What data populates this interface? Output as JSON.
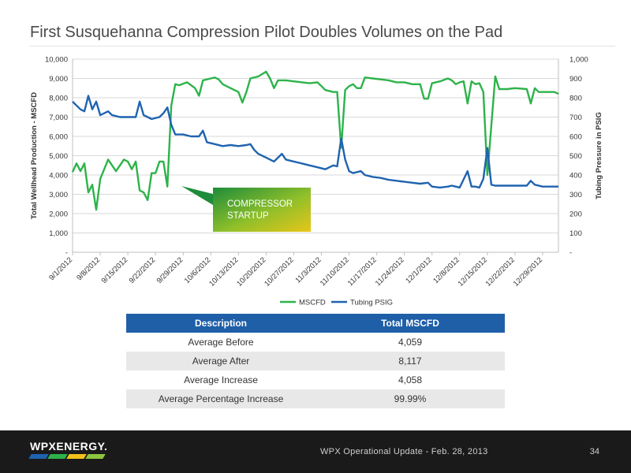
{
  "slide": {
    "title": "First Susquehanna Compression Pilot Doubles Volumes on the Pad"
  },
  "chart_data": {
    "type": "line",
    "ylabel": "Total Wellhead Production - MSCFD",
    "ylabel_right": "Tubing Pressure in PSIG",
    "ylim": [
      0,
      10000
    ],
    "ylim_right": [
      0,
      1000
    ],
    "y_ticks": [
      "-",
      "1,000",
      "2,000",
      "3,000",
      "4,000",
      "5,000",
      "6,000",
      "7,000",
      "8,000",
      "9,000",
      "10,000"
    ],
    "y_ticks_right": [
      "-",
      "100",
      "200",
      "300",
      "400",
      "500",
      "600",
      "700",
      "800",
      "900",
      "1,000"
    ],
    "x_ticks": [
      "9/1/2012",
      "9/8/2012",
      "9/15/2012",
      "9/22/2012",
      "9/29/2012",
      "10/6/2012",
      "10/13/2012",
      "10/20/2012",
      "10/27/2012",
      "11/3/2012",
      "11/10/2012",
      "11/17/2012",
      "11/24/2012",
      "12/1/2012",
      "12/8/2012",
      "12/15/2012",
      "12/22/2012",
      "12/29/2012"
    ],
    "x_start": "2012-09-01",
    "x_end": "2013-01-02",
    "grid": true,
    "legend_position": "bottom",
    "annotation": "COMPRESSOR STARTUP",
    "series": [
      {
        "name": "MSCFD",
        "axis": "left",
        "color": "#2db34a",
        "points": [
          [
            "2012-09-01",
            4150
          ],
          [
            "2012-09-02",
            4600
          ],
          [
            "2012-09-03",
            4200
          ],
          [
            "2012-09-04",
            4600
          ],
          [
            "2012-09-05",
            3100
          ],
          [
            "2012-09-06",
            3500
          ],
          [
            "2012-09-07",
            2200
          ],
          [
            "2012-09-08",
            3800
          ],
          [
            "2012-09-09",
            4300
          ],
          [
            "2012-09-10",
            4800
          ],
          [
            "2012-09-11",
            4500
          ],
          [
            "2012-09-12",
            4200
          ],
          [
            "2012-09-14",
            4800
          ],
          [
            "2012-09-15",
            4700
          ],
          [
            "2012-09-16",
            4300
          ],
          [
            "2012-09-17",
            4700
          ],
          [
            "2012-09-18",
            3200
          ],
          [
            "2012-09-19",
            3100
          ],
          [
            "2012-09-20",
            2700
          ],
          [
            "2012-09-21",
            4100
          ],
          [
            "2012-09-22",
            4100
          ],
          [
            "2012-09-23",
            4700
          ],
          [
            "2012-09-24",
            4700
          ],
          [
            "2012-09-25",
            3400
          ],
          [
            "2012-09-26",
            7600
          ],
          [
            "2012-09-27",
            8700
          ],
          [
            "2012-09-28",
            8650
          ],
          [
            "2012-09-30",
            8800
          ],
          [
            "2012-10-02",
            8500
          ],
          [
            "2012-10-03",
            8100
          ],
          [
            "2012-10-04",
            8900
          ],
          [
            "2012-10-06",
            9000
          ],
          [
            "2012-10-07",
            9050
          ],
          [
            "2012-10-08",
            8950
          ],
          [
            "2012-10-09",
            8700
          ],
          [
            "2012-10-11",
            8500
          ],
          [
            "2012-10-13",
            8300
          ],
          [
            "2012-10-14",
            7750
          ],
          [
            "2012-10-15",
            8300
          ],
          [
            "2012-10-16",
            9000
          ],
          [
            "2012-10-18",
            9100
          ],
          [
            "2012-10-20",
            9350
          ],
          [
            "2012-10-21",
            9000
          ],
          [
            "2012-10-22",
            8500
          ],
          [
            "2012-10-23",
            8900
          ],
          [
            "2012-10-25",
            8900
          ],
          [
            "2012-10-27",
            8850
          ],
          [
            "2012-10-29",
            8800
          ],
          [
            "2012-10-31",
            8750
          ],
          [
            "2012-11-02",
            8800
          ],
          [
            "2012-11-04",
            8400
          ],
          [
            "2012-11-06",
            8300
          ],
          [
            "2012-11-07",
            8300
          ],
          [
            "2012-11-08",
            5400
          ],
          [
            "2012-11-09",
            8400
          ],
          [
            "2012-11-10",
            8600
          ],
          [
            "2012-11-11",
            8700
          ],
          [
            "2012-11-12",
            8500
          ],
          [
            "2012-11-13",
            8500
          ],
          [
            "2012-11-14",
            9050
          ],
          [
            "2012-11-16",
            9000
          ],
          [
            "2012-11-18",
            8950
          ],
          [
            "2012-11-20",
            8900
          ],
          [
            "2012-11-22",
            8800
          ],
          [
            "2012-11-24",
            8800
          ],
          [
            "2012-11-26",
            8700
          ],
          [
            "2012-11-28",
            8700
          ],
          [
            "2012-11-29",
            7950
          ],
          [
            "2012-11-30",
            7950
          ],
          [
            "2012-12-01",
            8750
          ],
          [
            "2012-12-03",
            8850
          ],
          [
            "2012-12-05",
            9000
          ],
          [
            "2012-12-06",
            8900
          ],
          [
            "2012-12-07",
            8700
          ],
          [
            "2012-12-08",
            8800
          ],
          [
            "2012-12-09",
            8850
          ],
          [
            "2012-12-10",
            7700
          ],
          [
            "2012-12-11",
            8850
          ],
          [
            "2012-12-12",
            8700
          ],
          [
            "2012-12-13",
            8750
          ],
          [
            "2012-12-14",
            8300
          ],
          [
            "2012-12-15",
            4000
          ],
          [
            "2012-12-17",
            9100
          ],
          [
            "2012-12-18",
            8450
          ],
          [
            "2012-12-20",
            8450
          ],
          [
            "2012-12-22",
            8500
          ],
          [
            "2012-12-25",
            8450
          ],
          [
            "2012-12-26",
            7700
          ],
          [
            "2012-12-27",
            8500
          ],
          [
            "2012-12-28",
            8300
          ],
          [
            "2012-12-30",
            8300
          ],
          [
            "2012-12-31",
            8300
          ],
          [
            "2013-01-01",
            8300
          ],
          [
            "2013-01-02",
            8200
          ]
        ]
      },
      {
        "name": "Tubing PSIG",
        "axis": "right",
        "color": "#1f63b0",
        "points": [
          [
            "2012-09-01",
            780
          ],
          [
            "2012-09-02",
            760
          ],
          [
            "2012-09-03",
            740
          ],
          [
            "2012-09-04",
            730
          ],
          [
            "2012-09-05",
            810
          ],
          [
            "2012-09-06",
            740
          ],
          [
            "2012-09-07",
            780
          ],
          [
            "2012-09-08",
            710
          ],
          [
            "2012-09-10",
            730
          ],
          [
            "2012-09-11",
            710
          ],
          [
            "2012-09-13",
            700
          ],
          [
            "2012-09-15",
            700
          ],
          [
            "2012-09-17",
            700
          ],
          [
            "2012-09-18",
            780
          ],
          [
            "2012-09-19",
            710
          ],
          [
            "2012-09-20",
            700
          ],
          [
            "2012-09-21",
            690
          ],
          [
            "2012-09-23",
            700
          ],
          [
            "2012-09-24",
            720
          ],
          [
            "2012-09-25",
            750
          ],
          [
            "2012-09-26",
            660
          ],
          [
            "2012-09-27",
            610
          ],
          [
            "2012-09-29",
            610
          ],
          [
            "2012-10-01",
            600
          ],
          [
            "2012-10-03",
            600
          ],
          [
            "2012-10-04",
            630
          ],
          [
            "2012-10-05",
            570
          ],
          [
            "2012-10-07",
            560
          ],
          [
            "2012-10-09",
            550
          ],
          [
            "2012-10-11",
            555
          ],
          [
            "2012-10-13",
            550
          ],
          [
            "2012-10-15",
            555
          ],
          [
            "2012-10-16",
            560
          ],
          [
            "2012-10-17",
            530
          ],
          [
            "2012-10-18",
            510
          ],
          [
            "2012-10-20",
            490
          ],
          [
            "2012-10-22",
            470
          ],
          [
            "2012-10-24",
            510
          ],
          [
            "2012-10-25",
            480
          ],
          [
            "2012-10-27",
            470
          ],
          [
            "2012-10-29",
            460
          ],
          [
            "2012-10-31",
            450
          ],
          [
            "2012-11-02",
            440
          ],
          [
            "2012-11-04",
            430
          ],
          [
            "2012-11-06",
            450
          ],
          [
            "2012-11-07",
            445
          ],
          [
            "2012-11-08",
            590
          ],
          [
            "2012-11-09",
            480
          ],
          [
            "2012-11-10",
            420
          ],
          [
            "2012-11-11",
            410
          ],
          [
            "2012-11-13",
            420
          ],
          [
            "2012-11-14",
            400
          ],
          [
            "2012-11-16",
            390
          ],
          [
            "2012-11-18",
            385
          ],
          [
            "2012-11-20",
            375
          ],
          [
            "2012-11-22",
            370
          ],
          [
            "2012-11-24",
            365
          ],
          [
            "2012-11-26",
            360
          ],
          [
            "2012-11-28",
            355
          ],
          [
            "2012-11-30",
            360
          ],
          [
            "2012-12-01",
            340
          ],
          [
            "2012-12-03",
            335
          ],
          [
            "2012-12-05",
            340
          ],
          [
            "2012-12-06",
            345
          ],
          [
            "2012-12-07",
            340
          ],
          [
            "2012-12-08",
            335
          ],
          [
            "2012-12-10",
            420
          ],
          [
            "2012-12-11",
            340
          ],
          [
            "2012-12-12",
            340
          ],
          [
            "2012-12-13",
            335
          ],
          [
            "2012-12-14",
            380
          ],
          [
            "2012-12-15",
            540
          ],
          [
            "2012-12-16",
            350
          ],
          [
            "2012-12-17",
            345
          ],
          [
            "2012-12-18",
            345
          ],
          [
            "2012-12-20",
            345
          ],
          [
            "2012-12-22",
            345
          ],
          [
            "2012-12-25",
            345
          ],
          [
            "2012-12-26",
            370
          ],
          [
            "2012-12-27",
            350
          ],
          [
            "2012-12-29",
            340
          ],
          [
            "2013-01-02",
            340
          ]
        ]
      }
    ]
  },
  "table": {
    "headers": [
      "Description",
      "Total MSCFD"
    ],
    "rows": [
      [
        "Average Before",
        "4,059"
      ],
      [
        "Average After",
        "8,117"
      ],
      [
        "Average Increase",
        "4,058"
      ],
      [
        "Average Percentage Increase",
        "99.99%"
      ]
    ]
  },
  "footer": {
    "logo_text": "WPXENERGY.",
    "logo_colors": [
      "#1f63b0",
      "#2db34a",
      "#f2c21b",
      "#8dc63f"
    ],
    "note": "WPX Operational Update - Feb. 28, 2013",
    "page_number": "34"
  },
  "colors": {
    "table_header": "#1f5fa8",
    "callout_start": "#1e8c3a",
    "callout_end": "#e8c619"
  }
}
